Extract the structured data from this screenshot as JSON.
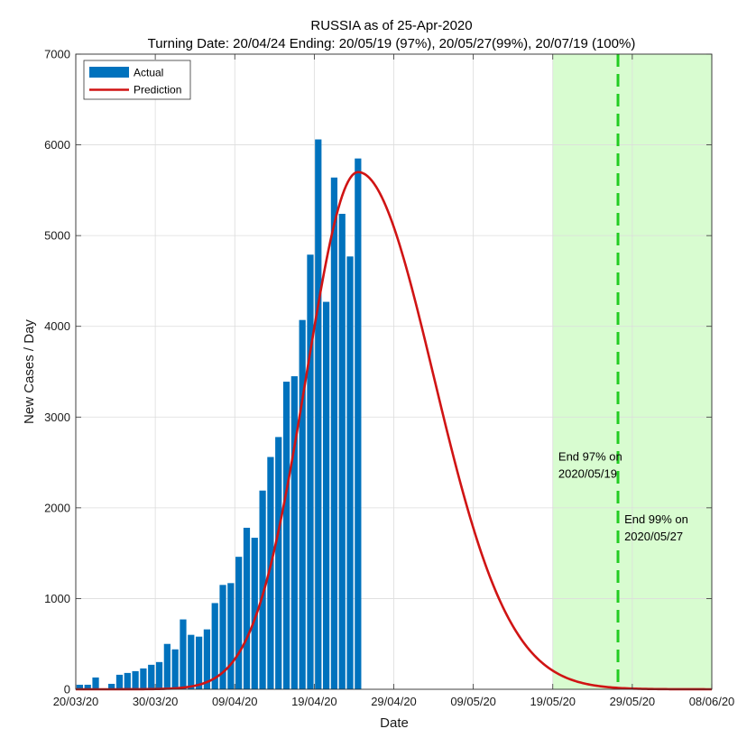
{
  "chart_data": {
    "type": "bar+line",
    "title": "RUSSIA as of 25-Apr-2020",
    "subtitle": "Turning Date: 20/04/24  Ending: 20/05/19 (97%), 20/05/27(99%), 20/07/19 (100%)",
    "xlabel": "Date",
    "ylabel": "New Cases / Day",
    "x_range_days": [
      0,
      80
    ],
    "ylim": [
      0,
      7000
    ],
    "y_ticks": [
      0,
      1000,
      2000,
      3000,
      4000,
      5000,
      6000,
      7000
    ],
    "x_tick_labels": [
      "20/03/20",
      "30/03/20",
      "09/04/20",
      "19/04/20",
      "29/04/20",
      "09/05/20",
      "19/05/20",
      "29/05/20",
      "08/06/20"
    ],
    "legend": {
      "position": "top-left",
      "entries": [
        "Actual",
        "Prediction"
      ]
    },
    "actual": {
      "name": "Actual",
      "color": "#0072BD",
      "start_day": 0,
      "values": [
        50,
        50,
        130,
        10,
        60,
        160,
        180,
        200,
        230,
        270,
        300,
        500,
        440,
        770,
        600,
        580,
        660,
        950,
        1150,
        1170,
        1460,
        1780,
        1670,
        2190,
        2560,
        2780,
        3390,
        3450,
        4070,
        4790,
        6060,
        4270,
        5640,
        5240,
        4770,
        5850
      ]
    },
    "prediction": {
      "name": "Prediction",
      "color": "#D01414",
      "peak_day": 35.5,
      "peak_value": 5700,
      "sigma_rise": 6.5,
      "sigma_fall": 9.5
    },
    "ending_region": {
      "start_day": 60,
      "end_day": 80,
      "color": "#d8fcd0"
    },
    "end_line": {
      "day": 68.2,
      "color": "#22cc22"
    },
    "annotations": [
      {
        "lines": [
          "End 97% on",
          "2020/05/19"
        ],
        "day": 60.7,
        "value": 2520
      },
      {
        "lines": [
          "End 99% on",
          "2020/05/27"
        ],
        "day": 69,
        "value": 1830
      }
    ]
  }
}
